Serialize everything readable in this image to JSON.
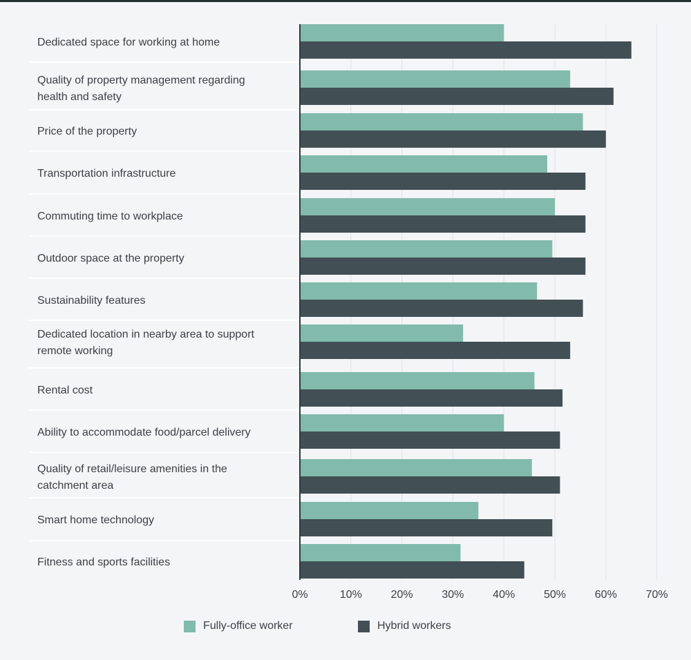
{
  "colors": {
    "fully_office": "#82bbab",
    "hybrid": "#424f55",
    "grid": "#dfe2e5",
    "axis": "#2f3a3a",
    "text": "#3a3f44",
    "background": "#f4f5f7"
  },
  "legend": {
    "fully_office": "Fully-office worker",
    "hybrid": "Hybrid workers"
  },
  "chart_data": {
    "type": "bar",
    "orientation": "horizontal",
    "categories": [
      "Dedicated space for working at home",
      "Quality of property management regarding health and safety",
      "Price of the property",
      "Transportation infrastructure",
      "Commuting time to workplace",
      "Outdoor space at the property",
      "Sustainability features",
      "Dedicated location in nearby area to support remote working",
      "Rental cost",
      "Ability to accommodate food/parcel delivery",
      "Quality of retail/leisure amenities in the catchment area",
      "Smart home technology",
      "Fitness and sports facilities"
    ],
    "category_lines": [
      [
        "Dedicated space for working at home"
      ],
      [
        "Quality of property management regarding",
        "health and safety"
      ],
      [
        "Price of the property"
      ],
      [
        "Transportation infrastructure"
      ],
      [
        "Commuting time to workplace"
      ],
      [
        "Outdoor space at the property"
      ],
      [
        "Sustainability features"
      ],
      [
        "Dedicated location in nearby area to support",
        "remote working"
      ],
      [
        "Rental cost"
      ],
      [
        "Ability to accommodate food/parcel delivery"
      ],
      [
        "Quality of retail/leisure amenities in the",
        "catchment area"
      ],
      [
        "Smart home technology"
      ],
      [
        "Fitness and sports facilities"
      ]
    ],
    "series": [
      {
        "name": "Fully-office worker",
        "values": [
          40,
          53,
          55.5,
          48.5,
          50,
          49.5,
          46.5,
          32,
          46,
          40,
          45.5,
          35,
          31.5
        ]
      },
      {
        "name": "Hybrid workers",
        "values": [
          65,
          61.5,
          60,
          56,
          56,
          56,
          55.5,
          53,
          51.5,
          51,
          51,
          49.5,
          44
        ]
      }
    ],
    "xlim": [
      0,
      70
    ],
    "xticks": [
      "0%",
      "10%",
      "20%",
      "30%",
      "40%",
      "50%",
      "60%",
      "70%"
    ],
    "grid": true,
    "legend_position": "bottom"
  }
}
